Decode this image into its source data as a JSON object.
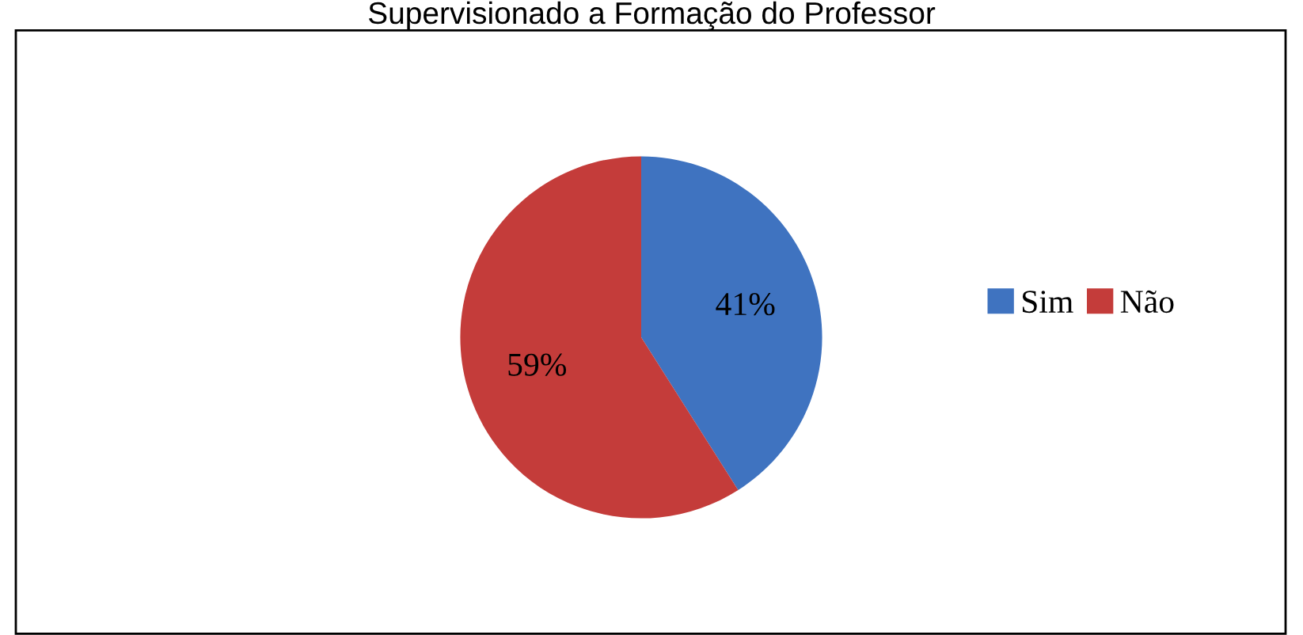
{
  "chart_data": {
    "type": "pie",
    "title": "Supervisionado a Formação do Professor",
    "categories": [
      "Sim",
      "Não"
    ],
    "values": [
      41,
      59
    ],
    "colors": [
      "#3f73c0",
      "#c43c3a"
    ],
    "value_labels": [
      "41%",
      "59%"
    ],
    "legend": "right"
  }
}
